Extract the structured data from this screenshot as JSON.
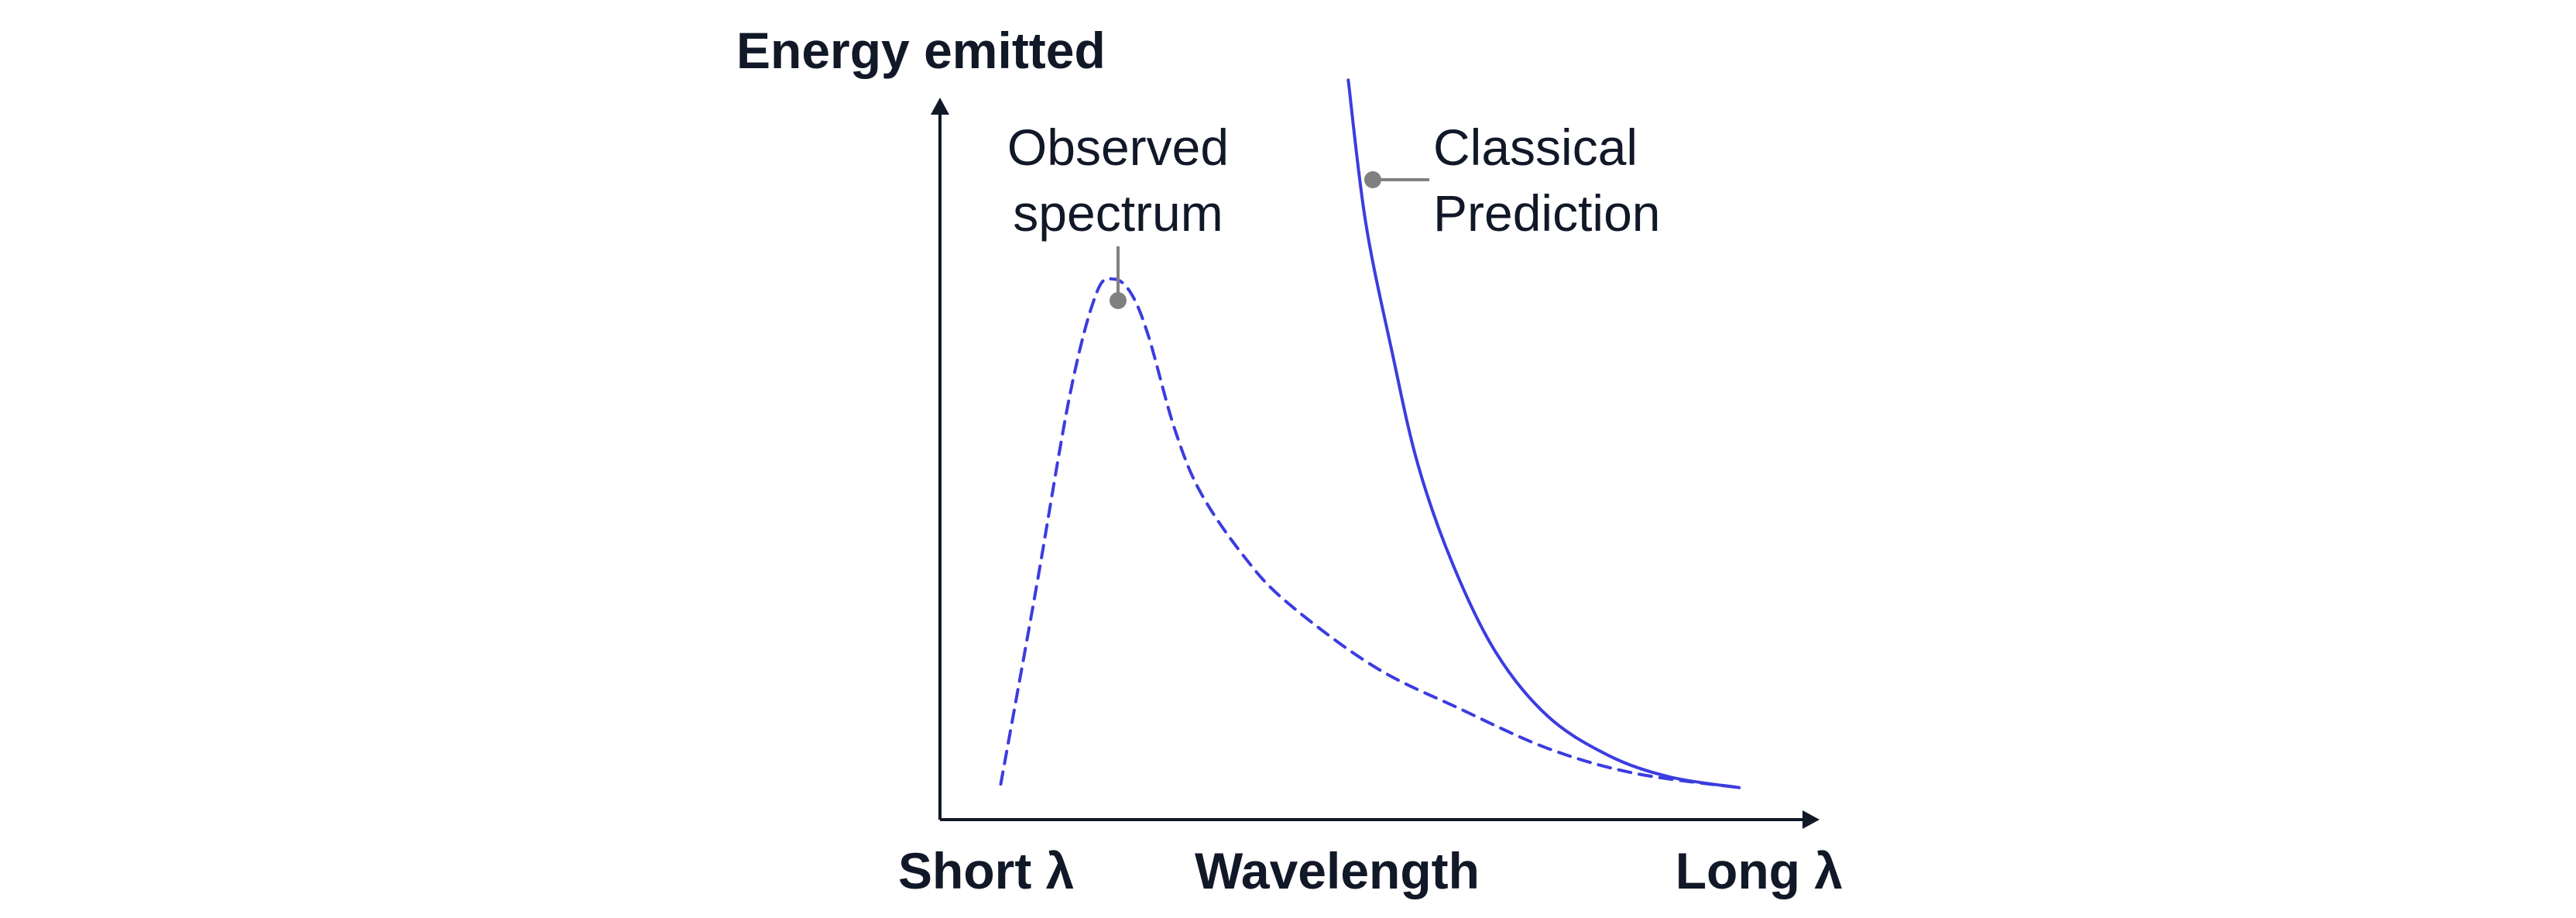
{
  "chart_data": {
    "type": "line",
    "ylabel": "Energy emitted",
    "xlabel": "Wavelength",
    "x_tick_labels": {
      "start": "Short λ",
      "end": "Long λ"
    },
    "xlim": [
      0,
      10
    ],
    "ylim": [
      0,
      10
    ],
    "series": [
      {
        "key": "observed",
        "style": "dashed",
        "x": [
          0.7,
          1.1,
          1.5,
          1.8,
          2.0,
          2.2,
          2.4,
          2.7,
          3.0,
          3.5,
          4.0,
          5.0,
          6.0,
          7.0,
          8.0,
          9.2
        ],
        "y": [
          0.5,
          3.2,
          6.0,
          7.4,
          7.6,
          7.4,
          6.8,
          5.5,
          4.6,
          3.7,
          3.05,
          2.15,
          1.55,
          1.0,
          0.65,
          0.45
        ]
      },
      {
        "key": "classical",
        "style": "solid",
        "x": [
          4.7,
          4.9,
          5.2,
          5.5,
          5.9,
          6.4,
          7.0,
          7.7,
          8.4,
          9.2
        ],
        "y": [
          10.4,
          8.4,
          6.6,
          5.0,
          3.6,
          2.35,
          1.45,
          0.9,
          0.6,
          0.45
        ]
      }
    ],
    "annotations": [
      {
        "target": "observed",
        "lines": [
          "Observed",
          "spectrum"
        ]
      },
      {
        "target": "classical",
        "lines": [
          "Classical",
          "Prediction"
        ]
      }
    ],
    "colors": {
      "line": "#3c3ce0",
      "axis": "#111827",
      "leader": "#808080",
      "text": "#111827"
    },
    "grid": false,
    "legend": "none"
  }
}
